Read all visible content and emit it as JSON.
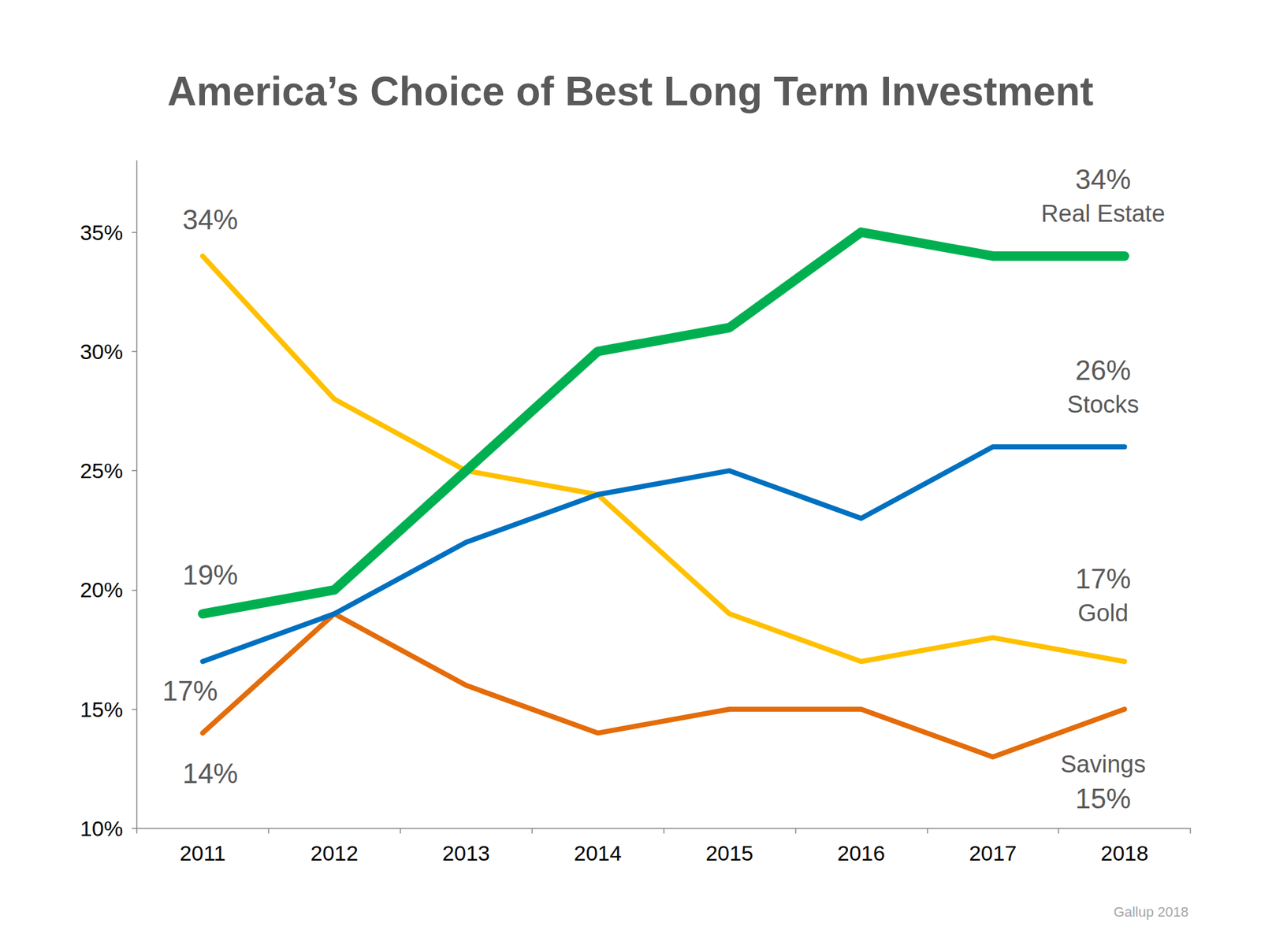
{
  "chart_data": {
    "type": "line",
    "title": "America’s Choice of Best Long Term Investment",
    "categories": [
      "2011",
      "2012",
      "2013",
      "2014",
      "2015",
      "2016",
      "2017",
      "2018"
    ],
    "series": [
      {
        "name": "Real Estate",
        "color": "#00b050",
        "values": [
          19,
          20,
          25,
          30,
          31,
          35,
          34,
          34
        ]
      },
      {
        "name": "Stocks",
        "color": "#0070c0",
        "values": [
          17,
          19,
          22,
          24,
          25,
          23,
          26,
          26
        ]
      },
      {
        "name": "Gold",
        "color": "#ffc000",
        "values": [
          34,
          28,
          25,
          24,
          19,
          17,
          18,
          17
        ]
      },
      {
        "name": "Savings",
        "color": "#e46c0a",
        "values": [
          14,
          19,
          16,
          14,
          15,
          15,
          13,
          15
        ]
      }
    ],
    "ylim": [
      10,
      38
    ],
    "yticks": [
      {
        "value": 10,
        "label": "10%"
      },
      {
        "value": 15,
        "label": "15%"
      },
      {
        "value": 20,
        "label": "20%"
      },
      {
        "value": 25,
        "label": "25%"
      },
      {
        "value": 30,
        "label": "30%"
      },
      {
        "value": 35,
        "label": "35%"
      }
    ],
    "grid": false,
    "annotations": [
      {
        "series": "Real Estate",
        "category": "2011",
        "text": "19%"
      },
      {
        "series": "Stocks",
        "category": "2011",
        "text": "17%"
      },
      {
        "series": "Gold",
        "category": "2011",
        "text": "34%"
      },
      {
        "series": "Savings",
        "category": "2011",
        "text": "14%"
      },
      {
        "series": "Real Estate",
        "category": "2018",
        "text": "34%"
      },
      {
        "series": "Stocks",
        "category": "2018",
        "text": "26%"
      },
      {
        "series": "Gold",
        "category": "2018",
        "text": "17%"
      },
      {
        "series": "Savings",
        "category": "2018",
        "text": "15%"
      }
    ],
    "source": "Gallup 2018"
  }
}
